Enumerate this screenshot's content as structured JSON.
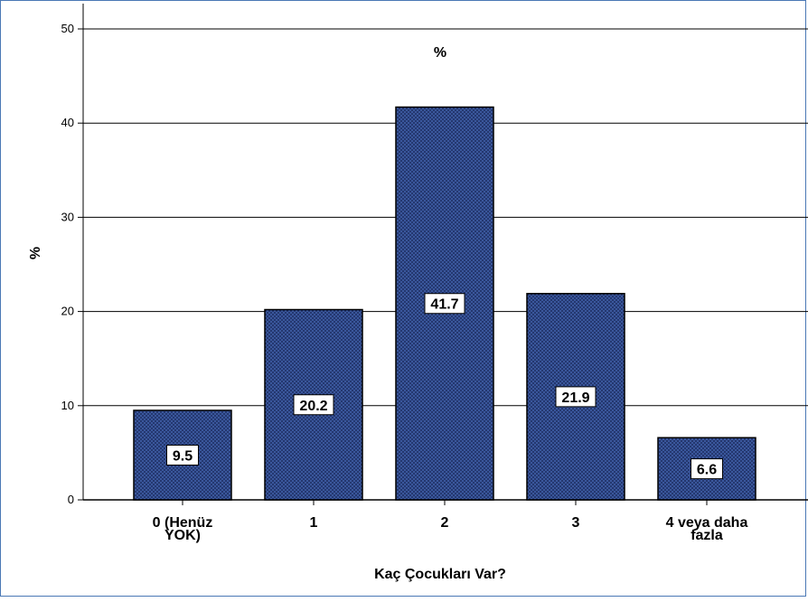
{
  "chart_data": {
    "type": "bar",
    "title": "%",
    "xlabel": "Kaç Çocukları Var?",
    "ylabel": "%",
    "categories": [
      [
        "0 (Henüz",
        "YOK)"
      ],
      [
        "1"
      ],
      [
        "2"
      ],
      [
        "3"
      ],
      [
        "4 veya daha",
        "fazla"
      ]
    ],
    "values": [
      9.5,
      20.2,
      41.7,
      21.9,
      6.6
    ],
    "data_labels": [
      "9.5",
      "20.2",
      "41.7",
      "21.9",
      "6.6"
    ],
    "ylim": [
      0,
      50
    ],
    "yticks": [
      0,
      10,
      20,
      30,
      40,
      50
    ],
    "ytick_labels": [
      "0",
      "10",
      "20",
      "30",
      "40",
      "50"
    ],
    "grid": true,
    "legend": "none",
    "bar_color": "#1b2a5e",
    "bar_pattern_color": "#3c5aa0"
  }
}
